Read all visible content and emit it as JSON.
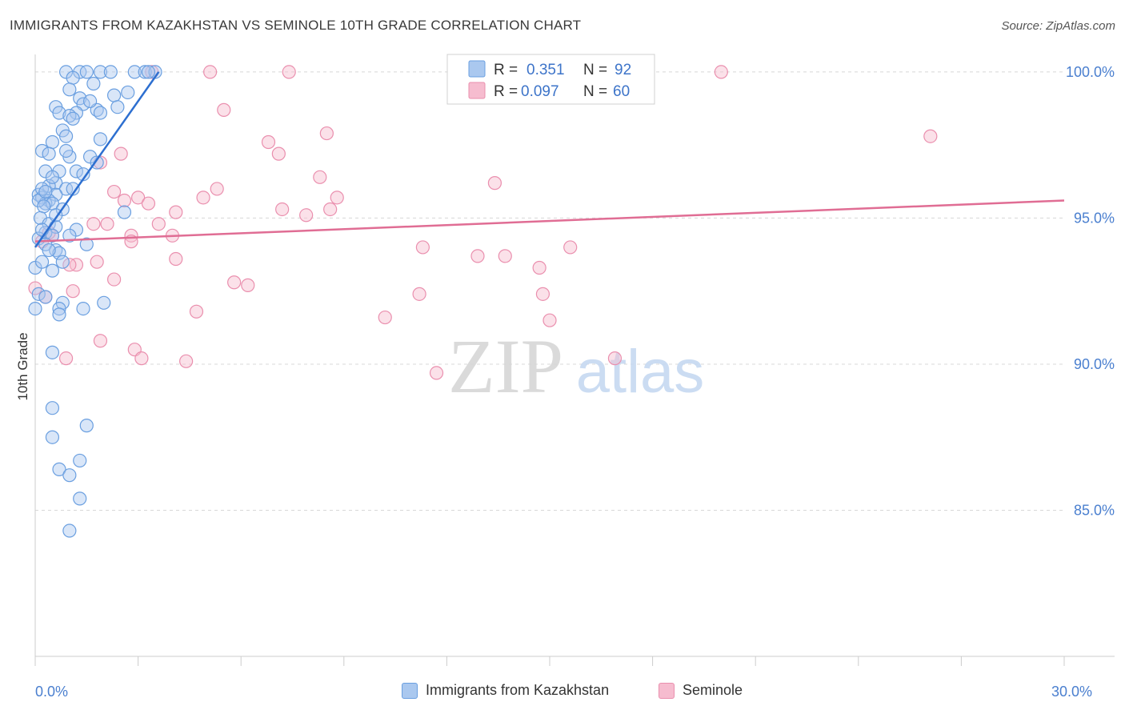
{
  "header": {
    "title": "IMMIGRANTS FROM KAZAKHSTAN VS SEMINOLE 10TH GRADE CORRELATION CHART",
    "source": "Source: ZipAtlas.com"
  },
  "watermark": {
    "zip": "ZIP",
    "atlas": "atlas"
  },
  "colors": {
    "blue_fill": "#aac8ef",
    "blue_stroke": "#6a9fe0",
    "blue_line": "#2d6fd0",
    "pink_fill": "#f6bccf",
    "pink_stroke": "#ea8fae",
    "pink_line": "#e06d94",
    "axis_text": "#4a7fcf",
    "grid": "#d8d8d8"
  },
  "legend": {
    "rows": [
      {
        "r_label": "R =",
        "r_value": "0.351",
        "n_label": "N =",
        "n_value": "92"
      },
      {
        "r_label": "R =",
        "r_value": "0.097",
        "n_label": "N =",
        "n_value": "60"
      }
    ]
  },
  "chart_data": {
    "type": "scatter",
    "title": "IMMIGRANTS FROM KAZAKHSTAN VS SEMINOLE 10TH GRADE CORRELATION CHART",
    "xlabel": "",
    "ylabel": "10th Grade",
    "xlim": [
      0,
      30
    ],
    "ylim": [
      80.0,
      100.6
    ],
    "x_tick_labels": [
      {
        "value": 0,
        "label": "0.0%"
      },
      {
        "value": 30,
        "label": "30.0%"
      }
    ],
    "x_minor_ticks": [
      0,
      3,
      6,
      9,
      12,
      15,
      18,
      21,
      24,
      27,
      30
    ],
    "y_ticks": [
      {
        "value": 100,
        "label": "100.0%"
      },
      {
        "value": 95,
        "label": "95.0%"
      },
      {
        "value": 90,
        "label": "90.0%"
      },
      {
        "value": 85,
        "label": "85.0%"
      }
    ],
    "series": [
      {
        "name": "Immigrants from Kazakhstan",
        "color": "blue",
        "R": 0.351,
        "N": 92,
        "trend": {
          "x0": 0.0,
          "y0": 94.0,
          "x1": 3.6,
          "y1": 100.0
        },
        "points": [
          [
            0.9,
            100
          ],
          [
            1.3,
            100
          ],
          [
            1.5,
            100
          ],
          [
            1.9,
            100
          ],
          [
            2.2,
            100
          ],
          [
            2.9,
            100
          ],
          [
            3.2,
            100
          ],
          [
            3.5,
            100
          ],
          [
            3.3,
            100
          ],
          [
            1.1,
            99.8
          ],
          [
            1.7,
            99.6
          ],
          [
            1.0,
            99.4
          ],
          [
            2.7,
            99.3
          ],
          [
            2.3,
            99.2
          ],
          [
            1.3,
            99.1
          ],
          [
            1.4,
            98.9
          ],
          [
            0.6,
            98.8
          ],
          [
            1.8,
            98.7
          ],
          [
            0.7,
            98.6
          ],
          [
            1.2,
            98.6
          ],
          [
            1.9,
            98.6
          ],
          [
            1.0,
            98.5
          ],
          [
            1.1,
            98.4
          ],
          [
            0.8,
            98.0
          ],
          [
            0.9,
            97.8
          ],
          [
            1.9,
            97.7
          ],
          [
            0.5,
            97.6
          ],
          [
            0.2,
            97.3
          ],
          [
            0.4,
            97.2
          ],
          [
            1.0,
            97.1
          ],
          [
            1.6,
            97.1
          ],
          [
            1.8,
            96.9
          ],
          [
            0.3,
            96.6
          ],
          [
            0.7,
            96.6
          ],
          [
            1.2,
            96.6
          ],
          [
            1.4,
            96.5
          ],
          [
            0.6,
            96.2
          ],
          [
            0.4,
            96.1
          ],
          [
            0.9,
            96.0
          ],
          [
            1.1,
            96.0
          ],
          [
            0.6,
            95.8
          ],
          [
            0.1,
            95.8
          ],
          [
            0.2,
            95.7
          ],
          [
            0.4,
            95.6
          ],
          [
            0.3,
            95.5
          ],
          [
            0.1,
            95.6
          ],
          [
            0.5,
            95.5
          ],
          [
            0.25,
            95.4
          ],
          [
            0.8,
            95.3
          ],
          [
            2.6,
            95.2
          ],
          [
            0.15,
            95.0
          ],
          [
            0.4,
            94.8
          ],
          [
            0.6,
            94.7
          ],
          [
            1.2,
            94.6
          ],
          [
            0.3,
            94.5
          ],
          [
            0.5,
            94.4
          ],
          [
            0.1,
            94.3
          ],
          [
            1.5,
            94.1
          ],
          [
            0.3,
            94.1
          ],
          [
            0.6,
            93.9
          ],
          [
            0.7,
            93.8
          ],
          [
            0.8,
            93.5
          ],
          [
            0.0,
            93.3
          ],
          [
            0.5,
            93.2
          ],
          [
            0.1,
            92.4
          ],
          [
            0.3,
            92.3
          ],
          [
            0.8,
            92.1
          ],
          [
            2.0,
            92.1
          ],
          [
            0.7,
            91.9
          ],
          [
            1.4,
            91.9
          ],
          [
            0.0,
            91.9
          ],
          [
            0.7,
            91.7
          ],
          [
            0.5,
            90.4
          ],
          [
            0.5,
            88.5
          ],
          [
            1.5,
            87.9
          ],
          [
            0.5,
            87.5
          ],
          [
            1.3,
            86.7
          ],
          [
            0.7,
            86.4
          ],
          [
            1.0,
            86.2
          ],
          [
            1.3,
            85.4
          ],
          [
            1.0,
            84.3
          ],
          [
            0.2,
            96.0
          ],
          [
            0.3,
            95.9
          ],
          [
            0.5,
            96.4
          ],
          [
            1.6,
            99.0
          ],
          [
            2.4,
            98.8
          ],
          [
            0.2,
            94.6
          ],
          [
            0.4,
            93.9
          ],
          [
            0.2,
            93.5
          ],
          [
            1.0,
            94.4
          ],
          [
            0.6,
            95.1
          ],
          [
            0.9,
            97.3
          ]
        ]
      },
      {
        "name": "Seminole",
        "color": "pink",
        "R": 0.097,
        "N": 60,
        "trend": {
          "x0": 0.0,
          "y0": 94.2,
          "x1": 30.0,
          "y1": 95.6
        },
        "points": [
          [
            3.4,
            100
          ],
          [
            5.1,
            100
          ],
          [
            7.4,
            100
          ],
          [
            20.0,
            100
          ],
          [
            5.5,
            98.7
          ],
          [
            8.5,
            97.9
          ],
          [
            26.1,
            97.8
          ],
          [
            6.8,
            97.6
          ],
          [
            7.1,
            97.2
          ],
          [
            2.5,
            97.2
          ],
          [
            1.9,
            96.9
          ],
          [
            8.3,
            96.4
          ],
          [
            13.4,
            96.2
          ],
          [
            2.3,
            95.9
          ],
          [
            5.3,
            96.0
          ],
          [
            4.9,
            95.7
          ],
          [
            3.0,
            95.7
          ],
          [
            2.6,
            95.6
          ],
          [
            3.3,
            95.5
          ],
          [
            8.8,
            95.7
          ],
          [
            7.2,
            95.3
          ],
          [
            8.6,
            95.3
          ],
          [
            7.9,
            95.1
          ],
          [
            2.1,
            94.8
          ],
          [
            1.7,
            94.8
          ],
          [
            3.6,
            94.8
          ],
          [
            2.8,
            94.4
          ],
          [
            4.0,
            94.4
          ],
          [
            0.5,
            94.4
          ],
          [
            0.2,
            94.2
          ],
          [
            11.3,
            94.0
          ],
          [
            15.6,
            94.0
          ],
          [
            12.9,
            93.7
          ],
          [
            13.7,
            93.7
          ],
          [
            4.1,
            93.6
          ],
          [
            1.2,
            93.4
          ],
          [
            1.8,
            93.5
          ],
          [
            14.7,
            93.3
          ],
          [
            2.3,
            92.9
          ],
          [
            5.8,
            92.8
          ],
          [
            6.2,
            92.7
          ],
          [
            1.1,
            92.5
          ],
          [
            11.2,
            92.4
          ],
          [
            14.8,
            92.4
          ],
          [
            0.0,
            92.6
          ],
          [
            0.3,
            92.3
          ],
          [
            4.7,
            91.8
          ],
          [
            10.2,
            91.6
          ],
          [
            15.0,
            91.5
          ],
          [
            1.9,
            90.8
          ],
          [
            2.9,
            90.5
          ],
          [
            3.1,
            90.2
          ],
          [
            0.9,
            90.2
          ],
          [
            4.4,
            90.1
          ],
          [
            11.7,
            89.7
          ],
          [
            16.9,
            90.2
          ],
          [
            0.4,
            94.5
          ],
          [
            1.0,
            93.4
          ],
          [
            2.8,
            94.2
          ],
          [
            4.1,
            95.2
          ]
        ]
      }
    ],
    "legend_position": "top-center"
  }
}
